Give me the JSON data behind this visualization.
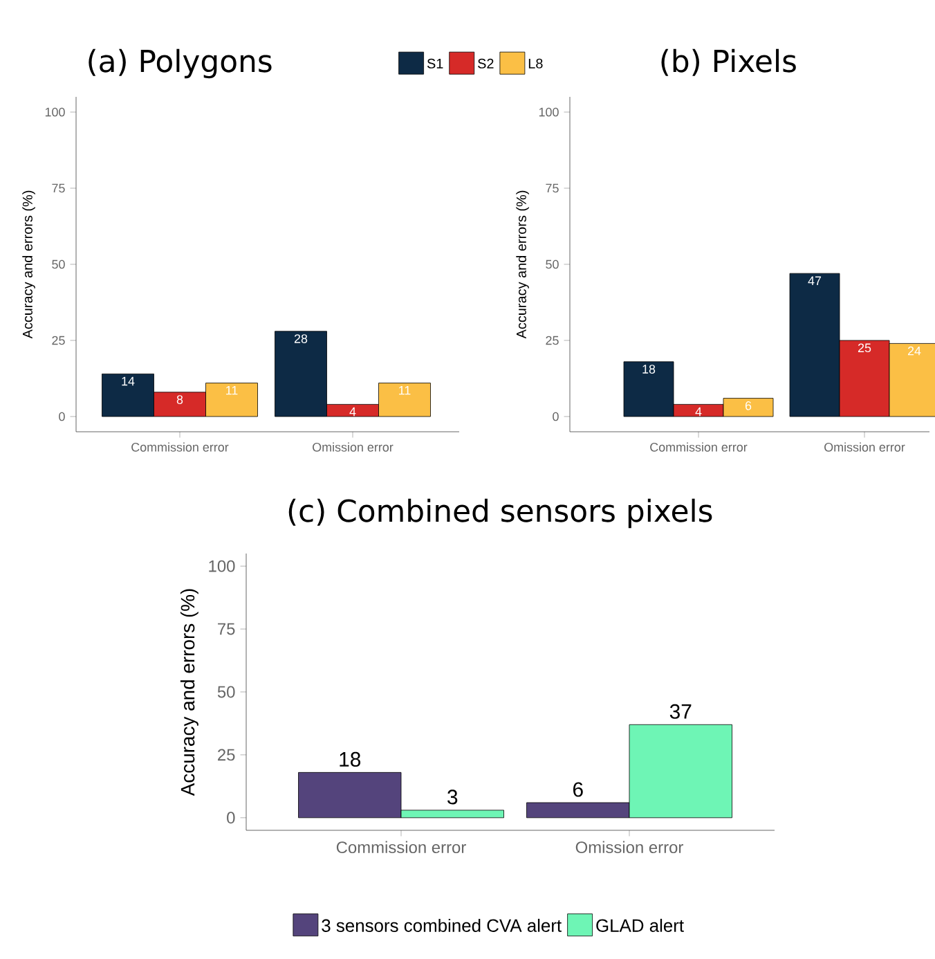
{
  "chart_data": [
    {
      "type": "bar",
      "title": "(a) Polygons",
      "ylabel": "Accuracy and errors (%)",
      "categories": [
        "Commission error",
        "Omission error"
      ],
      "ylim": [
        -5,
        105
      ],
      "yticks": [
        0,
        25,
        50,
        75,
        100
      ],
      "data_labels": true,
      "legend": "top",
      "grid": false,
      "series": [
        {
          "name": "S1",
          "color": "#0d2a45",
          "values": [
            14,
            28
          ]
        },
        {
          "name": "S2",
          "color": "#d62a28",
          "values": [
            8,
            4
          ]
        },
        {
          "name": "L8",
          "color": "#fbbf45",
          "values": [
            11,
            11
          ]
        }
      ]
    },
    {
      "type": "bar",
      "title": "(b) Pixels",
      "ylabel": "Accuracy and errors (%)",
      "categories": [
        "Commission error",
        "Omission error"
      ],
      "ylim": [
        -5,
        105
      ],
      "yticks": [
        0,
        25,
        50,
        75,
        100
      ],
      "data_labels": true,
      "legend": false,
      "grid": false,
      "series": [
        {
          "color": "#0d2a45",
          "values": [
            18,
            47
          ]
        },
        {
          "color": "#d62a28",
          "values": [
            4,
            25
          ]
        },
        {
          "color": "#fbbf45",
          "values": [
            6,
            24
          ]
        }
      ]
    },
    {
      "type": "bar",
      "title": "(c) Combined sensors pixels",
      "ylabel": "Accuracy and errors (%)",
      "categories": [
        "Commission error",
        "Omission error"
      ],
      "ylim": [
        -5,
        105
      ],
      "yticks": [
        0,
        25,
        50,
        75,
        100
      ],
      "data_labels": true,
      "legend": "bottom",
      "grid": false,
      "series": [
        {
          "name": "3 sensors combined CVA alert",
          "color": "#54447c",
          "values": [
            18,
            6
          ]
        },
        {
          "name": "GLAD alert",
          "color": "#6ef5b5",
          "values": [
            3,
            37
          ]
        }
      ]
    }
  ]
}
